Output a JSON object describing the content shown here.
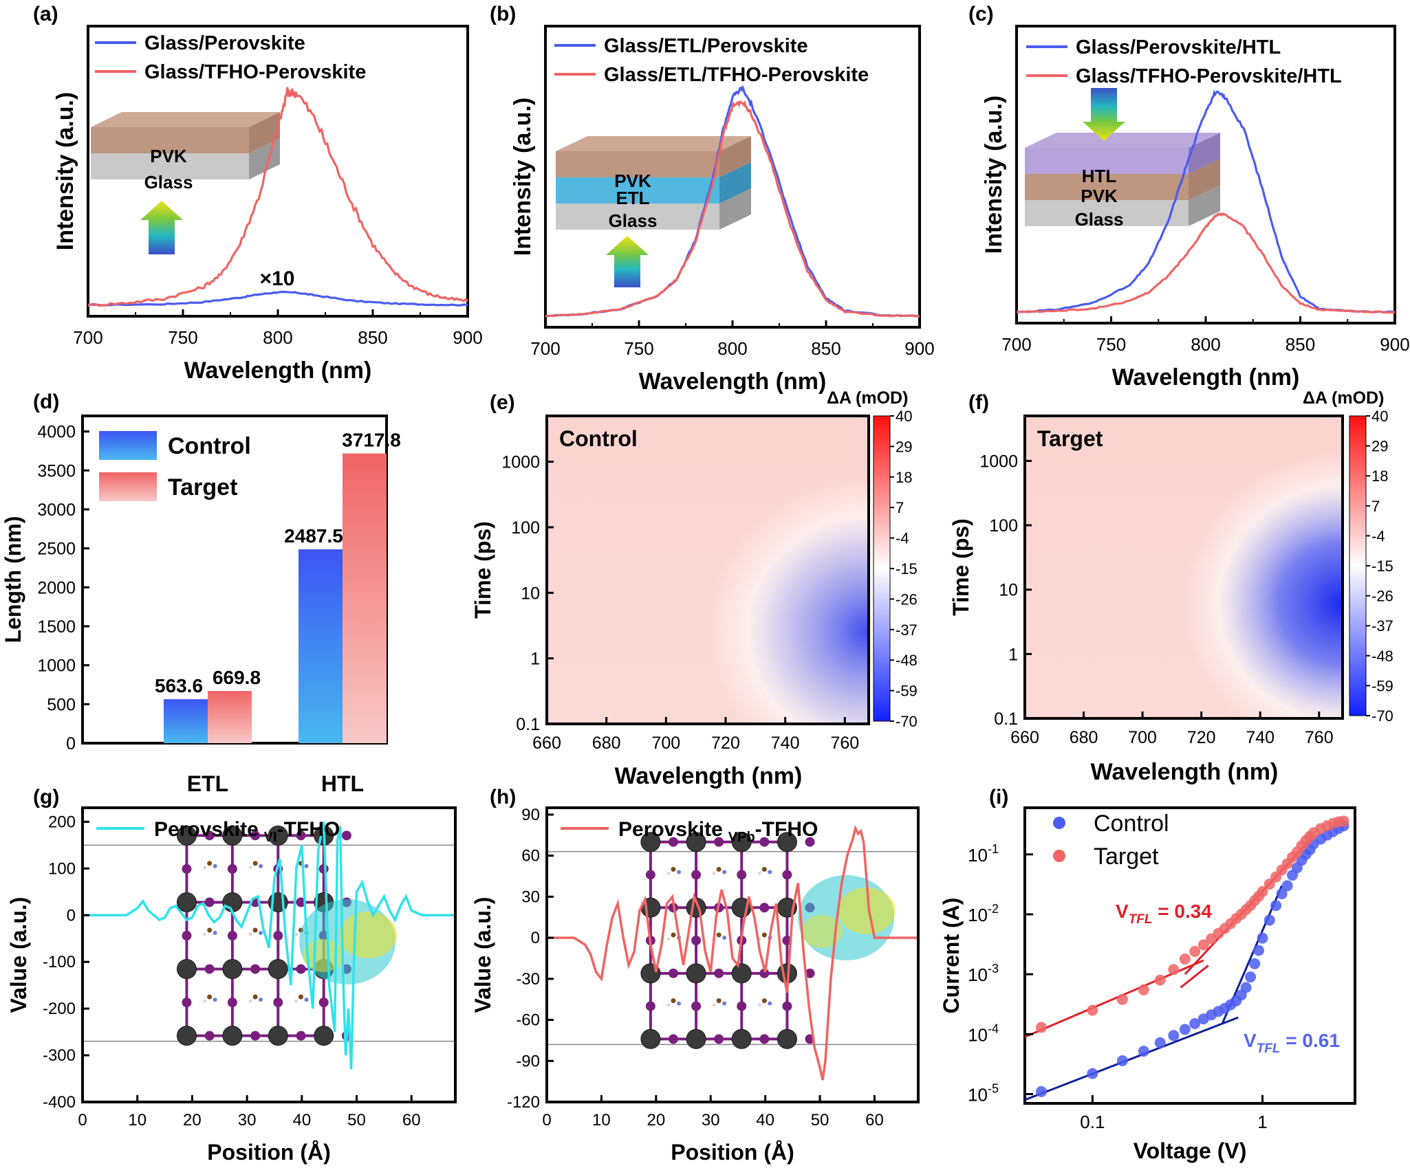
{
  "colors": {
    "blue": "#4b5cf0",
    "red": "#f06464",
    "cyan": "#2fe3ea",
    "blueBar": "#3a63f0",
    "redBar": "#f06a6a"
  },
  "chart_data": [
    {
      "id": "a",
      "type": "line",
      "panel_label": "(a)",
      "xlabel": "Wavelength (nm)",
      "ylabel": "Intensity (a.u.)",
      "xlim": [
        700,
        900
      ],
      "xticks": [
        "700",
        "750",
        "800",
        "850",
        "900"
      ],
      "series": [
        {
          "name": "Glass/Perovskite",
          "color": "blue",
          "x": [
            700,
            740,
            760,
            780,
            790,
            800,
            810,
            820,
            840,
            860,
            880,
            900
          ],
          "y": [
            0.0,
            0.005,
            0.014,
            0.035,
            0.05,
            0.06,
            0.058,
            0.045,
            0.02,
            0.008,
            0.003,
            0.001
          ]
        },
        {
          "name": "Glass/TFHO-Perovskite",
          "color": "red",
          "x": [
            700,
            720,
            740,
            760,
            770,
            780,
            790,
            800,
            805,
            810,
            820,
            830,
            840,
            850,
            860,
            870,
            880,
            890,
            900
          ],
          "y": [
            0.0,
            0.01,
            0.03,
            0.08,
            0.14,
            0.28,
            0.5,
            0.82,
            0.98,
            0.98,
            0.85,
            0.65,
            0.45,
            0.28,
            0.16,
            0.09,
            0.05,
            0.03,
            0.02
          ]
        }
      ],
      "annotation": "×10",
      "inset_layers": [
        "PVK",
        "Glass"
      ]
    },
    {
      "id": "b",
      "type": "line",
      "panel_label": "(b)",
      "xlabel": "Wavelength (nm)",
      "ylabel": "Intensity (a.u.)",
      "xlim": [
        700,
        900
      ],
      "xticks": [
        "700",
        "750",
        "800",
        "850",
        "900"
      ],
      "series": [
        {
          "name": "Glass/ETL/Perovskite",
          "color": "blue",
          "x": [
            700,
            720,
            740,
            760,
            770,
            780,
            790,
            795,
            800,
            805,
            810,
            820,
            830,
            840,
            850,
            860,
            880,
            900
          ],
          "y": [
            0.0,
            0.01,
            0.03,
            0.09,
            0.16,
            0.33,
            0.62,
            0.82,
            0.96,
            1.0,
            0.93,
            0.72,
            0.45,
            0.22,
            0.08,
            0.025,
            0.005,
            0.0
          ]
        },
        {
          "name": "Glass/ETL/TFHO-Perovskite",
          "color": "red",
          "x": [
            700,
            720,
            740,
            760,
            770,
            780,
            790,
            795,
            800,
            805,
            810,
            820,
            830,
            840,
            850,
            860,
            880,
            900
          ],
          "y": [
            0.0,
            0.01,
            0.03,
            0.09,
            0.16,
            0.32,
            0.6,
            0.8,
            0.92,
            0.94,
            0.89,
            0.69,
            0.42,
            0.2,
            0.07,
            0.02,
            0.004,
            0.0
          ]
        }
      ],
      "inset_layers": [
        "PVK",
        "ETL",
        "Glass"
      ]
    },
    {
      "id": "c",
      "type": "line",
      "panel_label": "(c)",
      "xlabel": "Wavelength (nm)",
      "ylabel": "Intensity (a.u.)",
      "xlim": [
        700,
        900
      ],
      "xticks": [
        "700",
        "750",
        "800",
        "850",
        "900"
      ],
      "series": [
        {
          "name": "Glass/Perovskite/HTL",
          "color": "blue",
          "x": [
            700,
            720,
            740,
            760,
            770,
            780,
            790,
            800,
            805,
            810,
            820,
            830,
            840,
            850,
            860,
            880,
            900
          ],
          "y": [
            0.0,
            0.01,
            0.04,
            0.12,
            0.22,
            0.4,
            0.66,
            0.9,
            0.98,
            0.96,
            0.82,
            0.55,
            0.25,
            0.07,
            0.015,
            0.002,
            0.0
          ]
        },
        {
          "name": "Glass/TFHO-Perovskite/HTL",
          "color": "red",
          "x": [
            700,
            720,
            740,
            760,
            770,
            780,
            790,
            800,
            805,
            810,
            820,
            830,
            840,
            850,
            860,
            880,
            900
          ],
          "y": [
            0.0,
            0.005,
            0.015,
            0.05,
            0.09,
            0.16,
            0.26,
            0.38,
            0.43,
            0.44,
            0.38,
            0.26,
            0.12,
            0.04,
            0.01,
            0.002,
            0.0
          ]
        }
      ],
      "inset_layers": [
        "HTL",
        "PVK",
        "Glass"
      ]
    },
    {
      "id": "d",
      "type": "bar",
      "panel_label": "(d)",
      "xlabel": "",
      "ylabel": "Length (nm)",
      "ylim": [
        0,
        4200
      ],
      "yticks": [
        0,
        500,
        1000,
        1500,
        2000,
        2500,
        3000,
        3500,
        4000
      ],
      "categories": [
        "ETL",
        "HTL"
      ],
      "series": [
        {
          "name": "Control",
          "color": "blueBar",
          "values": [
            563.6,
            2487.5
          ],
          "labels": [
            "563.6",
            "2487.5"
          ]
        },
        {
          "name": "Target",
          "color": "redBar",
          "values": [
            669.8,
            3717.8
          ],
          "labels": [
            "669.8",
            "3717.8"
          ]
        }
      ]
    },
    {
      "id": "e",
      "type": "heatmap",
      "panel_label": "(e)",
      "title": "Control",
      "xlabel": "Wavelength (nm)",
      "ylabel": "Time (ps)",
      "yscale": "log",
      "xlim": [
        660,
        768
      ],
      "ylim": [
        0.1,
        5000
      ],
      "xticks": [
        "660",
        "680",
        "700",
        "720",
        "740",
        "760"
      ],
      "yticks": [
        "0.1",
        "1",
        "10",
        "100",
        "1000"
      ],
      "colorbar_label": "ΔA (mOD)",
      "colorbar_ticks": [
        "40",
        "29",
        "18",
        "7",
        "-4",
        "-15",
        "-26",
        "-37",
        "-48",
        "-59",
        "-70"
      ]
    },
    {
      "id": "f",
      "type": "heatmap",
      "panel_label": "(f)",
      "title": "Target",
      "xlabel": "Wavelength (nm)",
      "ylabel": "Time (ps)",
      "yscale": "log",
      "xlim": [
        660,
        768
      ],
      "ylim": [
        0.1,
        5000
      ],
      "xticks": [
        "660",
        "680",
        "700",
        "720",
        "740",
        "760"
      ],
      "yticks": [
        "0.1",
        "1",
        "10",
        "100",
        "1000"
      ],
      "colorbar_label": "ΔA (mOD)",
      "colorbar_ticks": [
        "40",
        "29",
        "18",
        "7",
        "-4",
        "-15",
        "-26",
        "-37",
        "-48",
        "-59",
        "-70"
      ]
    },
    {
      "id": "g",
      "type": "line",
      "panel_label": "(g)",
      "xlabel": "Position (Å)",
      "ylabel": "Value (a.u.)",
      "xlim": [
        0,
        68
      ],
      "ylim": [
        -400,
        230
      ],
      "xticks": [
        0,
        10,
        20,
        30,
        40,
        50,
        60
      ],
      "yticks": [
        200,
        100,
        0,
        -100,
        -200,
        -300,
        -400
      ],
      "legend_name": "Perovskite",
      "legend_sub": "VI",
      "legend_suffix": "-TFHO",
      "series": [
        {
          "color": "cyan",
          "x": [
            0,
            8,
            10,
            11,
            12,
            13,
            14,
            15,
            16,
            17,
            18,
            19,
            20,
            21,
            22,
            23,
            24,
            25,
            26,
            27,
            28,
            29,
            30,
            31,
            32,
            33,
            34,
            35,
            36,
            37,
            38,
            39,
            40,
            41,
            42,
            43,
            44,
            45,
            46,
            46.5,
            47,
            47.5,
            48,
            48.5,
            49,
            49.5,
            50,
            51,
            52,
            53,
            54,
            55,
            56,
            57,
            58,
            59,
            60,
            62,
            68
          ],
          "y": [
            0,
            0,
            15,
            30,
            10,
            0,
            -10,
            -5,
            15,
            20,
            5,
            -10,
            -5,
            20,
            25,
            0,
            -15,
            -5,
            20,
            15,
            -10,
            -25,
            5,
            35,
            40,
            -30,
            -70,
            80,
            120,
            -40,
            -150,
            100,
            150,
            -80,
            -200,
            140,
            200,
            -150,
            -250,
            160,
            190,
            -120,
            -300,
            -200,
            -330,
            -100,
            50,
            70,
            30,
            0,
            20,
            40,
            10,
            -10,
            20,
            40,
            10,
            0,
            0
          ]
        }
      ]
    },
    {
      "id": "h",
      "type": "line",
      "panel_label": "(h)",
      "xlabel": "Position (Å)",
      "ylabel": "Value (a.u.)",
      "xlim": [
        0,
        68
      ],
      "ylim": [
        -120,
        95
      ],
      "xticks": [
        0,
        10,
        20,
        30,
        40,
        50,
        60
      ],
      "yticks": [
        90,
        60,
        30,
        0,
        -30,
        -60,
        -90,
        -120
      ],
      "legend_name": "Perovskite",
      "legend_sub": "VPb",
      "legend_suffix": "-TFHO",
      "series": [
        {
          "color": "red",
          "x": [
            0,
            5,
            7,
            8,
            9,
            10,
            11,
            12,
            13,
            14,
            15,
            16,
            17,
            18,
            19,
            20,
            21,
            22,
            23,
            24,
            25,
            26,
            27,
            28,
            29,
            30,
            31,
            32,
            33,
            34,
            35,
            36,
            37,
            38,
            39,
            40,
            41,
            42,
            43,
            44,
            45,
            46,
            47,
            48,
            49,
            50,
            50.5,
            51,
            52,
            53,
            54,
            55,
            56,
            56.5,
            57,
            57.5,
            58,
            59,
            60,
            62,
            68
          ],
          "y": [
            0,
            0,
            -5,
            -12,
            -25,
            -30,
            -5,
            15,
            25,
            0,
            -20,
            -10,
            20,
            28,
            -5,
            -25,
            -5,
            25,
            30,
            5,
            -20,
            5,
            30,
            20,
            -10,
            -25,
            15,
            35,
            20,
            -15,
            -20,
            10,
            30,
            15,
            -10,
            -25,
            5,
            25,
            -20,
            -40,
            20,
            40,
            -10,
            -50,
            -80,
            -95,
            -104,
            -90,
            -30,
            10,
            40,
            60,
            72,
            80,
            76,
            78,
            70,
            20,
            0,
            0,
            0
          ]
        }
      ]
    },
    {
      "id": "i",
      "type": "scatter",
      "panel_label": "(i)",
      "xlabel": "Voltage (V)",
      "ylabel": "Current (A)",
      "xscale": "log",
      "yscale": "log",
      "xlim": [
        0.04,
        3.5
      ],
      "ylim": [
        7e-06,
        0.6
      ],
      "xticks": [
        0.1,
        1
      ],
      "xticklabels": [
        "0.1",
        "1"
      ],
      "yticks": [
        1e-05,
        0.0001,
        0.001,
        0.01,
        0.1
      ],
      "series": [
        {
          "name": "Control",
          "color": "blue",
          "x": [
            0.05,
            0.1,
            0.15,
            0.2,
            0.25,
            0.3,
            0.35,
            0.4,
            0.45,
            0.5,
            0.55,
            0.6,
            0.65,
            0.7,
            0.75,
            0.8,
            0.85,
            0.9,
            0.95,
            1.0,
            1.1,
            1.2,
            1.3,
            1.4,
            1.5,
            1.6,
            1.7,
            1.8,
            1.9,
            2.0,
            2.2,
            2.4,
            2.6,
            2.8,
            3.0
          ],
          "y": [
            1.1e-05,
            2.2e-05,
            3.6e-05,
            5.2e-05,
            7.2e-05,
            9.5e-05,
            0.00012,
            0.00015,
            0.00018,
            0.00021,
            0.00024,
            0.00027,
            0.00031,
            0.00036,
            0.00045,
            0.0006,
            0.0009,
            0.0015,
            0.0025,
            0.004,
            0.008,
            0.014,
            0.022,
            0.03,
            0.045,
            0.06,
            0.08,
            0.1,
            0.12,
            0.15,
            0.18,
            0.21,
            0.24,
            0.27,
            0.3
          ]
        },
        {
          "name": "Target",
          "color": "red",
          "x": [
            0.05,
            0.1,
            0.15,
            0.2,
            0.25,
            0.3,
            0.35,
            0.4,
            0.45,
            0.5,
            0.55,
            0.6,
            0.65,
            0.7,
            0.75,
            0.8,
            0.85,
            0.9,
            0.95,
            1.0,
            1.1,
            1.2,
            1.3,
            1.4,
            1.5,
            1.6,
            1.7,
            1.8,
            1.9,
            2.0,
            2.2,
            2.4,
            2.6,
            2.8,
            3.0
          ],
          "y": [
            0.00013,
            0.00025,
            0.00038,
            0.00055,
            0.0008,
            0.0012,
            0.0018,
            0.0024,
            0.0031,
            0.0039,
            0.0048,
            0.0058,
            0.007,
            0.0085,
            0.01,
            0.012,
            0.014,
            0.017,
            0.02,
            0.024,
            0.032,
            0.042,
            0.055,
            0.07,
            0.09,
            0.11,
            0.14,
            0.17,
            0.2,
            0.23,
            0.27,
            0.3,
            0.33,
            0.35,
            0.36
          ]
        }
      ],
      "fit_lines": [
        {
          "color": "#e0202a",
          "x": [
            0.04,
            0.45
          ],
          "y": [
            9e-05,
            0.0017
          ]
        },
        {
          "color": "#e0202a",
          "x": [
            0.33,
            0.48
          ],
          "y": [
            0.0006,
            0.0014
          ]
        },
        {
          "color": "#e0202a",
          "x": [
            0.35,
            2.0
          ],
          "y": [
            0.001,
            0.2
          ]
        },
        {
          "color": "#10209a",
          "x": [
            0.04,
            0.72
          ],
          "y": [
            8e-06,
            0.00019
          ]
        },
        {
          "color": "#10209a",
          "x": [
            0.58,
            1.3
          ],
          "y": [
            0.00015,
            0.03
          ]
        }
      ],
      "annotations": [
        {
          "prefix": "V",
          "sub": "TFL",
          "text": " = 0.34",
          "color": "#e0202a"
        },
        {
          "prefix": "V",
          "sub": "TFL",
          "text": " = 0.61",
          "color": "#5566ee"
        }
      ]
    }
  ]
}
